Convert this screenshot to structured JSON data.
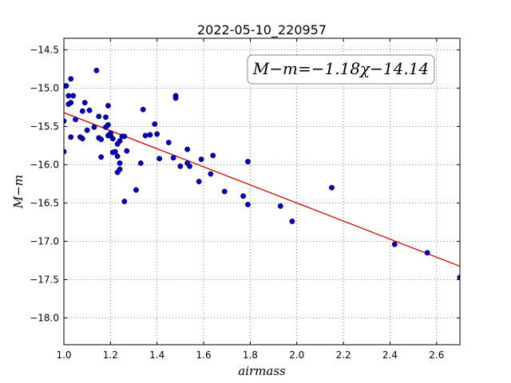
{
  "chart_data": {
    "type": "scatter",
    "title": "2022-05-10_220957",
    "xlabel": "airmass",
    "ylabel": "M−m",
    "xlim": [
      1.0,
      2.7
    ],
    "ylim": [
      -18.35,
      -14.35
    ],
    "y_inverted": true,
    "grid": true,
    "xticks": [
      1.0,
      1.2,
      1.4,
      1.6,
      1.8,
      2.0,
      2.2,
      2.4,
      2.6
    ],
    "xtick_labels": [
      "1.0",
      "1.2",
      "1.4",
      "1.6",
      "1.8",
      "2.0",
      "2.2",
      "2.4",
      "2.6"
    ],
    "yticks": [
      -14.5,
      -15.0,
      -15.5,
      -16.0,
      -16.5,
      -17.0,
      -17.5,
      -18.0
    ],
    "ytick_labels": [
      "−14.5",
      "−15.0",
      "−15.5",
      "−16.0",
      "−16.5",
      "−17.0",
      "−17.5",
      "−18.0"
    ],
    "annotation": "M−m=−1.18χ−14.14",
    "fit": {
      "slope": -1.18,
      "intercept": -14.14,
      "color": "#d40000"
    },
    "point_color": "#0000cc",
    "points": [
      [
        1.0,
        -15.83
      ],
      [
        1.0,
        -15.43
      ],
      [
        1.01,
        -14.97
      ],
      [
        1.02,
        -15.1
      ],
      [
        1.02,
        -15.21
      ],
      [
        1.03,
        -14.88
      ],
      [
        1.03,
        -15.64
      ],
      [
        1.03,
        -15.19
      ],
      [
        1.04,
        -15.1
      ],
      [
        1.05,
        -15.41
      ],
      [
        1.07,
        -15.64
      ],
      [
        1.08,
        -15.3
      ],
      [
        1.08,
        -15.66
      ],
      [
        1.09,
        -15.19
      ],
      [
        1.1,
        -15.55
      ],
      [
        1.11,
        -15.29
      ],
      [
        1.13,
        -15.51
      ],
      [
        1.14,
        -14.77
      ],
      [
        1.15,
        -15.37
      ],
      [
        1.15,
        -15.65
      ],
      [
        1.16,
        -15.67
      ],
      [
        1.16,
        -15.9
      ],
      [
        1.18,
        -15.51
      ],
      [
        1.18,
        -15.38
      ],
      [
        1.19,
        -15.23
      ],
      [
        1.19,
        -15.62
      ],
      [
        1.19,
        -15.48
      ],
      [
        1.2,
        -15.62
      ],
      [
        1.2,
        -15.59
      ],
      [
        1.21,
        -15.66
      ],
      [
        1.21,
        -15.84
      ],
      [
        1.22,
        -15.83
      ],
      [
        1.23,
        -15.73
      ],
      [
        1.23,
        -15.89
      ],
      [
        1.23,
        -16.1
      ],
      [
        1.24,
        -16.06
      ],
      [
        1.24,
        -15.98
      ],
      [
        1.24,
        -15.69
      ],
      [
        1.25,
        -15.63
      ],
      [
        1.26,
        -15.63
      ],
      [
        1.26,
        -16.48
      ],
      [
        1.27,
        -15.82
      ],
      [
        1.31,
        -16.33
      ],
      [
        1.33,
        -15.98
      ],
      [
        1.34,
        -15.28
      ],
      [
        1.35,
        -15.62
      ],
      [
        1.37,
        -15.61
      ],
      [
        1.39,
        -15.47
      ],
      [
        1.4,
        -15.6
      ],
      [
        1.41,
        -15.92
      ],
      [
        1.45,
        -15.71
      ],
      [
        1.47,
        -15.91
      ],
      [
        1.48,
        -15.1
      ],
      [
        1.48,
        -15.13
      ],
      [
        1.5,
        -16.02
      ],
      [
        1.53,
        -15.8
      ],
      [
        1.53,
        -15.98
      ],
      [
        1.54,
        -16.02
      ],
      [
        1.58,
        -16.22
      ],
      [
        1.59,
        -15.93
      ],
      [
        1.63,
        -16.12
      ],
      [
        1.64,
        -15.88
      ],
      [
        1.69,
        -16.35
      ],
      [
        1.77,
        -16.41
      ],
      [
        1.79,
        -15.96
      ],
      [
        1.79,
        -16.52
      ],
      [
        1.93,
        -16.54
      ],
      [
        1.98,
        -16.74
      ],
      [
        2.15,
        -16.3
      ],
      [
        2.42,
        -17.04
      ],
      [
        2.56,
        -17.15
      ],
      [
        2.7,
        -17.47
      ]
    ]
  }
}
